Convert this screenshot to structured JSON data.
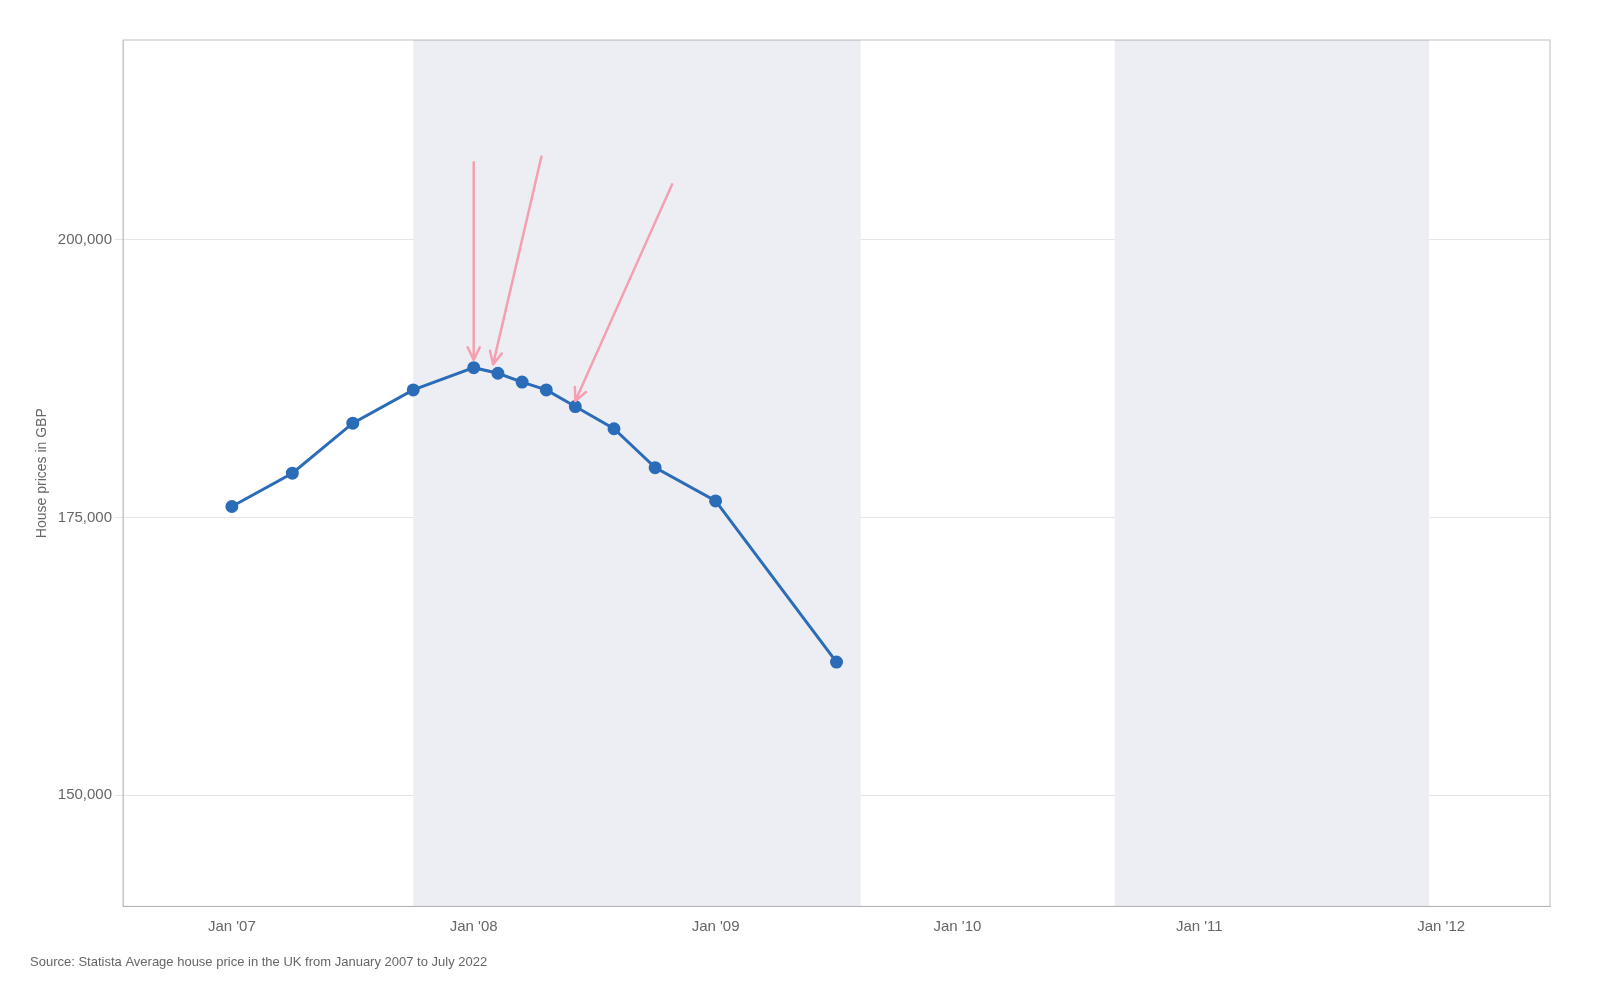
{
  "chart_data": {
    "type": "line",
    "x": [
      2007.0,
      2007.25,
      2007.5,
      2007.75,
      2008.0,
      2008.1,
      2008.2,
      2008.3,
      2008.42,
      2008.58,
      2008.75,
      2009.0,
      2009.5
    ],
    "values": [
      176000,
      179000,
      183500,
      186500,
      188500,
      188000,
      187200,
      186500,
      185000,
      183000,
      179500,
      176500,
      162000
    ],
    "color": "#2B6CB8",
    "marker": "circle",
    "ylabel": "House prices in GBP",
    "source": "Source: Statista Average house price in the UK from January 2007 to July 2022",
    "xlim": [
      2006.55,
      2012.45
    ],
    "xticks": [
      {
        "value": 2007.0,
        "label": "Jan '07"
      },
      {
        "value": 2008.0,
        "label": "Jan '08"
      },
      {
        "value": 2009.0,
        "label": "Jan '09"
      },
      {
        "value": 2010.0,
        "label": "Jan '10"
      },
      {
        "value": 2011.0,
        "label": "Jan '11"
      },
      {
        "value": 2012.0,
        "label": "Jan '12"
      }
    ],
    "ylim": [
      140000,
      218000
    ],
    "yticks": [
      {
        "value": 150000,
        "label": "150,000"
      },
      {
        "value": 175000,
        "label": "175,000"
      },
      {
        "value": 200000,
        "label": "200,000"
      }
    ],
    "grid": "y",
    "highlight_bands": {
      "color": "#eceef4",
      "ranges": [
        [
          2007.75,
          2009.6
        ],
        [
          2010.65,
          2011.95
        ]
      ]
    },
    "arrows": {
      "color": "#f4a0b0",
      "items": [
        {
          "from": [
            2008.0,
            207000
          ],
          "to": [
            2008.0,
            189200
          ]
        },
        {
          "from": [
            2008.28,
            207500
          ],
          "to": [
            2008.08,
            188800
          ]
        },
        {
          "from": [
            2008.82,
            205000
          ],
          "to": [
            2008.42,
            185500
          ]
        }
      ]
    }
  }
}
